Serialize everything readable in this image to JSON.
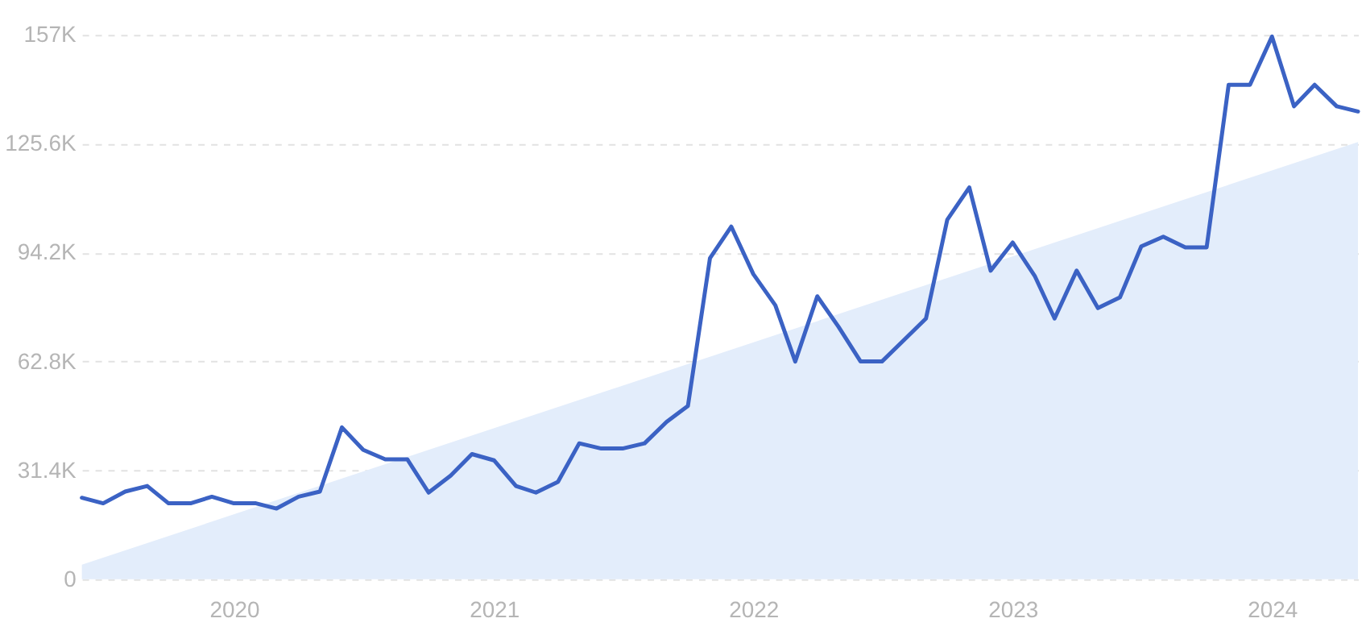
{
  "chart_data": {
    "type": "line",
    "x": [
      "2019-06",
      "2019-07",
      "2019-08",
      "2019-09",
      "2019-10",
      "2019-11",
      "2019-12",
      "2020-01",
      "2020-02",
      "2020-03",
      "2020-04",
      "2020-05",
      "2020-06",
      "2020-07",
      "2020-08",
      "2020-09",
      "2020-10",
      "2020-11",
      "2020-12",
      "2021-01",
      "2021-02",
      "2021-03",
      "2021-04",
      "2021-05",
      "2021-06",
      "2021-07",
      "2021-08",
      "2021-09",
      "2021-10",
      "2021-11",
      "2021-12",
      "2022-01",
      "2022-02",
      "2022-03",
      "2022-04",
      "2022-05",
      "2022-06",
      "2022-07",
      "2022-08",
      "2022-09",
      "2022-10",
      "2022-11",
      "2022-12",
      "2023-01",
      "2023-02",
      "2023-03",
      "2023-04",
      "2023-05",
      "2023-06",
      "2023-07",
      "2023-08",
      "2023-09",
      "2023-10",
      "2023-11",
      "2023-12",
      "2024-01",
      "2024-02",
      "2024-03",
      "2024-04",
      "2024-05"
    ],
    "series": [
      {
        "type": "area",
        "color": "#e3edfb",
        "x": [
          "2019-06",
          "2024-05"
        ],
        "values": [
          4200,
          126100
        ]
      },
      {
        "color": "#3b62c4",
        "values": [
          23500,
          21900,
          25300,
          26900,
          21900,
          21900,
          23800,
          21900,
          21900,
          20400,
          23800,
          25300,
          43800,
          37300,
          34600,
          34600,
          25000,
          29900,
          36100,
          34300,
          26900,
          25000,
          28100,
          39200,
          37700,
          37700,
          39200,
          45400,
          50000,
          92600,
          101700,
          88000,
          79000,
          62800,
          81600,
          72800,
          62800,
          62800,
          69000,
          75200,
          103700,
          113000,
          89000,
          97100,
          87500,
          75200,
          89000,
          78200,
          81300,
          96000,
          98800,
          95700,
          95700,
          142600,
          142600,
          156500,
          136400,
          142600,
          136400,
          134900
        ]
      }
    ],
    "xlim": [
      "2019-06",
      "2024-05"
    ],
    "xticks": [
      "2020",
      "2021",
      "2022",
      "2023",
      "2024"
    ],
    "ylim": [
      0,
      157000
    ],
    "yticks": [
      {
        "value": 0,
        "label": "0"
      },
      {
        "value": 31400,
        "label": "31.4K"
      },
      {
        "value": 62800,
        "label": "62.8K"
      },
      {
        "value": 94200,
        "label": "94.2K"
      },
      {
        "value": 125600,
        "label": "125.6K"
      },
      {
        "value": 157000,
        "label": "157K"
      }
    ],
    "grid": "y",
    "marker": "none",
    "line_style": "solid"
  }
}
